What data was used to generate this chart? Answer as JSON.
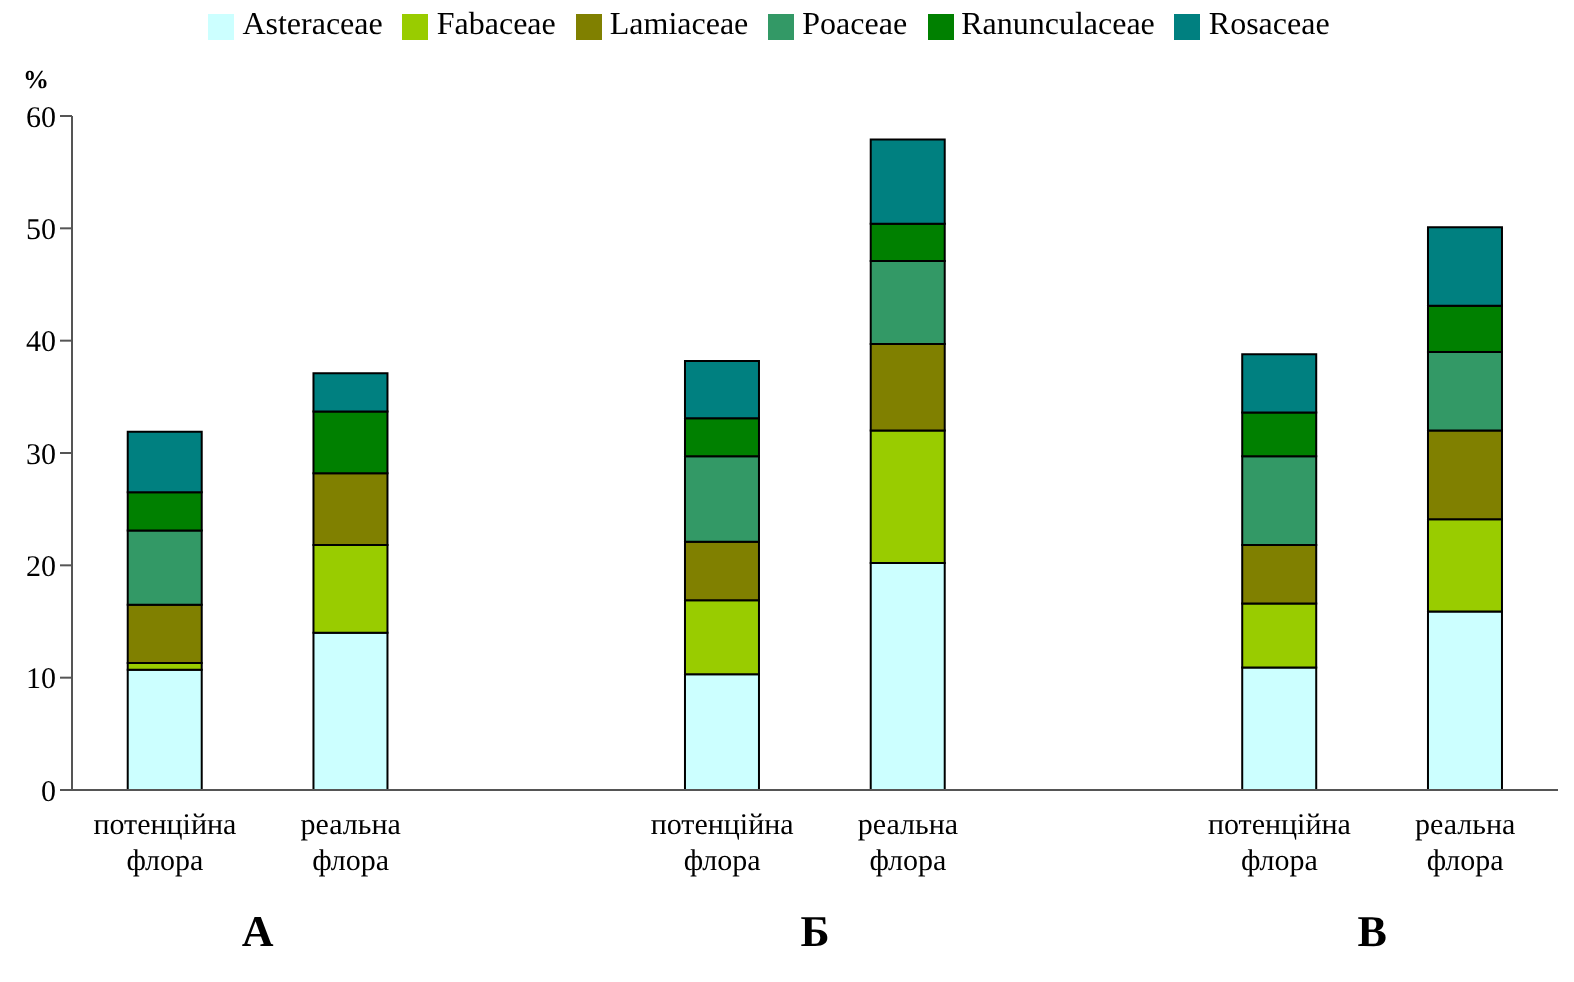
{
  "chart_data": {
    "type": "bar",
    "stacked": true,
    "ylabel": "%",
    "categories": [
      "потенційна флора",
      "реальна флора",
      null,
      "потенційна флора",
      "реальна флора",
      null,
      "потенційна флора",
      "реальна флора"
    ],
    "series": [
      {
        "name": "Asteraceae",
        "color": "#ccffff",
        "values": [
          10.7,
          14.0,
          null,
          10.3,
          20.2,
          null,
          10.9,
          15.9
        ]
      },
      {
        "name": "Fabaceae",
        "color": "#99cc00",
        "values": [
          0.6,
          7.8,
          null,
          6.6,
          11.8,
          null,
          5.7,
          8.2
        ]
      },
      {
        "name": "Lamiaceae",
        "color": "#808000",
        "values": [
          5.2,
          6.4,
          null,
          5.2,
          7.7,
          null,
          5.2,
          7.9
        ]
      },
      {
        "name": "Poaceae",
        "color": "#339966",
        "values": [
          6.6,
          0,
          null,
          7.6,
          7.4,
          null,
          7.9,
          7.0
        ]
      },
      {
        "name": "Ranunculaceae",
        "color": "#008000",
        "values": [
          3.4,
          5.5,
          null,
          3.4,
          3.3,
          null,
          3.9,
          4.1
        ]
      },
      {
        "name": "Rosaceae",
        "color": "#008080",
        "values": [
          5.4,
          3.4,
          null,
          5.1,
          7.5,
          null,
          5.2,
          7.0
        ]
      }
    ],
    "ylim": [
      0,
      60
    ],
    "yticks": [
      0,
      10,
      20,
      30,
      40,
      50,
      60
    ],
    "grid": false,
    "legend": "top",
    "annotations": [
      "А",
      "Б",
      "В"
    ]
  }
}
